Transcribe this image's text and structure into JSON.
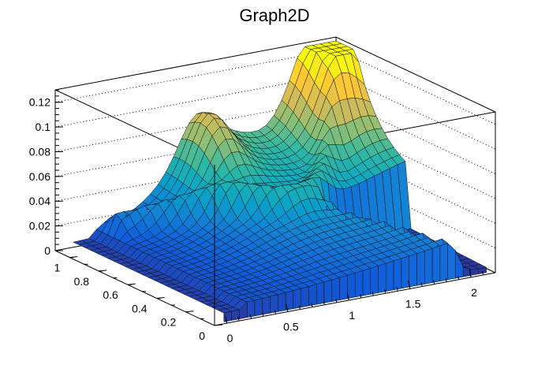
{
  "chart_data": {
    "type": "surface",
    "title": "Graph2D",
    "grid": true,
    "axes": {
      "x": {
        "range": [
          -0.1,
          2.2
        ],
        "ticks": [
          0,
          0.5,
          1,
          1.5,
          2
        ],
        "tick_labels": [
          "0",
          "0.5",
          "1",
          "1.5",
          "2"
        ]
      },
      "y": {
        "range": [
          0,
          1.1
        ],
        "ticks": [
          0,
          0.2,
          0.4,
          0.6,
          0.8,
          1
        ],
        "tick_labels": [
          "0",
          "0.2",
          "0.4",
          "0.6",
          "0.8",
          "1"
        ]
      },
      "z": {
        "range": [
          0,
          0.13
        ],
        "ticks": [
          0,
          0.02,
          0.04,
          0.06,
          0.08,
          0.1,
          0.12
        ],
        "tick_labels": [
          "0",
          "0.02",
          "0.04",
          "0.06",
          "0.08",
          "0.1",
          "0.12"
        ]
      }
    },
    "peak": {
      "x": 2.0,
      "y": 1.05,
      "z": 0.125
    },
    "palette": [
      "#352a87",
      "#0f5cdd",
      "#1481d6",
      "#06a4ca",
      "#2eb7a4",
      "#87bf77",
      "#d1bb59",
      "#fec832",
      "#f9fb0e"
    ]
  }
}
